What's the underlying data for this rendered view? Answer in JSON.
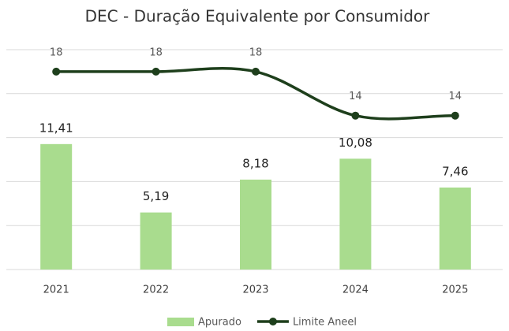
{
  "chart_data": {
    "type": "bar-line",
    "title": "DEC - Duração Equivalente por Consumidor",
    "categories": [
      "2021",
      "2022",
      "2023",
      "2024",
      "2025"
    ],
    "series": [
      {
        "name": "Apurado",
        "type": "bar",
        "color": "#a9dc8e",
        "values": [
          11.41,
          5.19,
          8.18,
          10.08,
          7.46
        ],
        "value_labels": [
          "11,41",
          "5,19",
          "8,18",
          "10,08",
          "7,46"
        ]
      },
      {
        "name": "Limite Aneel",
        "type": "line",
        "color": "#1e3f1c",
        "values": [
          18,
          18,
          18,
          14,
          14
        ]
      }
    ],
    "ylim": [
      0,
      20
    ],
    "yticks": [
      0,
      4,
      8,
      12,
      16,
      20
    ],
    "grid": true,
    "legend": "bottom"
  }
}
